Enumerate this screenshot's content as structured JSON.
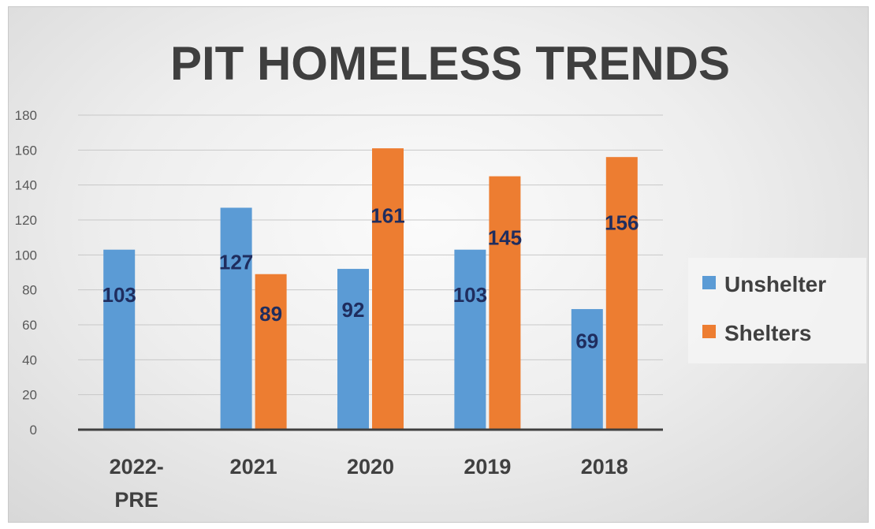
{
  "chart_data": {
    "type": "bar",
    "title": "PIT HOMELESS TRENDS",
    "categories": [
      [
        "2022-",
        "PRE"
      ],
      [
        "2021"
      ],
      [
        "2020"
      ],
      [
        "2019"
      ],
      [
        "2018"
      ]
    ],
    "series": [
      {
        "name": "Unshelter",
        "color": "#5b9bd5",
        "values": [
          103,
          127,
          92,
          103,
          69
        ]
      },
      {
        "name": "Shelters",
        "color": "#ed7d31",
        "values": [
          null,
          89,
          161,
          145,
          156
        ]
      }
    ],
    "data_labels": [
      [
        "103",
        "127",
        "92",
        "103",
        "69"
      ],
      [
        null,
        "89",
        "161",
        "145",
        "156"
      ]
    ],
    "ylim": [
      0,
      180
    ],
    "yticks": [
      0,
      20,
      40,
      60,
      80,
      100,
      120,
      140,
      160,
      180
    ],
    "grid": true,
    "legend_position": "right",
    "colors": {
      "gridline": "#c8c8c8",
      "axis": "#404040",
      "data_label": "#1f2d5e"
    }
  }
}
